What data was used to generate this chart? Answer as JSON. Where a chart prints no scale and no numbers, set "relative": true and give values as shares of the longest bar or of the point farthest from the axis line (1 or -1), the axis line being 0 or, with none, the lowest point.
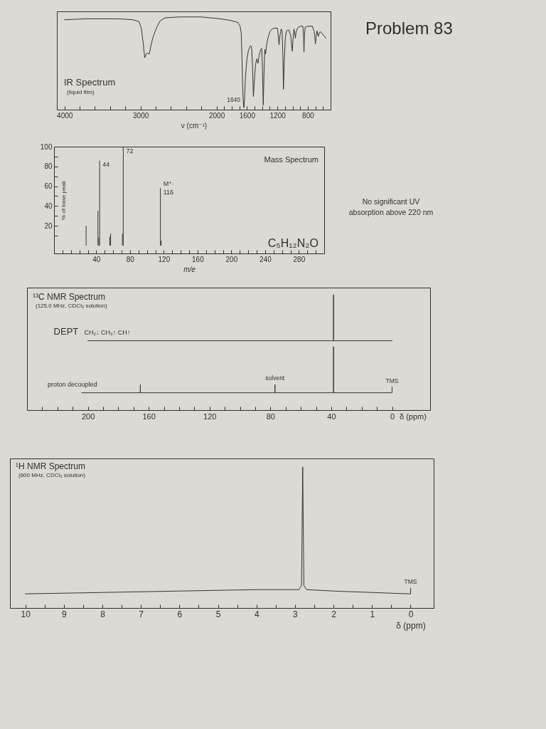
{
  "chart_data": [
    {
      "type": "line",
      "title": "IR Spectrum",
      "subtitle": "(liquid film)",
      "xlabel": "ν (cm⁻¹)",
      "relative": true,
      "color": "#333333",
      "x": [
        4000,
        3700,
        3300,
        3100,
        3020,
        2990,
        2965,
        2945,
        2925,
        2905,
        2885,
        2865,
        2840,
        2810,
        2780,
        2740,
        2680,
        2500,
        2200,
        1950,
        1800,
        1720,
        1690,
        1675,
        1665,
        1655,
        1645,
        1640,
        1632,
        1620,
        1600,
        1580,
        1555,
        1540,
        1528,
        1515,
        1502,
        1488,
        1470,
        1455,
        1440,
        1420,
        1405,
        1395,
        1386,
        1376,
        1365,
        1355,
        1345,
        1330,
        1300,
        1270,
        1230,
        1200,
        1188,
        1178,
        1166,
        1150,
        1138,
        1128,
        1120,
        1110,
        1095,
        1080,
        1050,
        1025,
        1012,
        1004,
        995,
        982,
        972,
        963,
        955,
        935,
        900,
        865,
        856,
        850,
        844,
        835,
        800,
        740,
        715,
        700,
        688,
        678,
        668,
        660,
        650,
        630,
        600,
        560
      ],
      "values": [
        0.97,
        0.98,
        0.98,
        0.97,
        0.95,
        0.88,
        0.72,
        0.56,
        0.6,
        0.61,
        0.6,
        0.68,
        0.77,
        0.84,
        0.9,
        0.96,
        0.99,
        1.0,
        1.0,
        0.98,
        0.96,
        0.94,
        0.9,
        0.82,
        0.55,
        0.2,
        0.04,
        0.02,
        0.12,
        0.35,
        0.55,
        0.64,
        0.69,
        0.68,
        0.5,
        0.14,
        0.32,
        0.48,
        0.55,
        0.5,
        0.58,
        0.65,
        0.66,
        0.42,
        0.05,
        0.38,
        0.65,
        0.6,
        0.68,
        0.75,
        0.84,
        0.87,
        0.88,
        0.88,
        0.8,
        0.7,
        0.8,
        0.87,
        0.85,
        0.6,
        0.22,
        0.5,
        0.78,
        0.85,
        0.86,
        0.8,
        0.7,
        0.63,
        0.75,
        0.87,
        0.83,
        0.77,
        0.83,
        0.88,
        0.9,
        0.9,
        0.8,
        0.62,
        0.8,
        0.89,
        0.9,
        0.9,
        0.84,
        0.71,
        0.8,
        0.85,
        0.8,
        0.79,
        0.83,
        0.84,
        0.81,
        0.77
      ],
      "xlim": [
        4100,
        500
      ],
      "xticks": [
        4000,
        {
          "value": 3800,
          "label": null
        },
        {
          "value": 3600,
          "label": null
        },
        {
          "value": 3400,
          "label": null
        },
        {
          "value": 3200,
          "label": null
        },
        3000,
        {
          "value": 2800,
          "label": null
        },
        {
          "value": 2600,
          "label": null
        },
        {
          "value": 2400,
          "label": null
        },
        {
          "value": 2200,
          "label": null
        },
        2000,
        {
          "value": 1900,
          "label": null
        },
        {
          "value": 1800,
          "label": null
        },
        {
          "value": 1700,
          "label": null
        },
        1600,
        {
          "value": 1500,
          "label": null
        },
        {
          "value": 1400,
          "label": null
        },
        {
          "value": 1300,
          "label": null
        },
        1200,
        {
          "value": 1100,
          "label": null
        },
        {
          "value": 1000,
          "label": null
        },
        {
          "value": 900,
          "label": null
        },
        800,
        {
          "value": 700,
          "label": null
        },
        {
          "value": 600,
          "label": null
        }
      ],
      "annotations": [
        {
          "text": "1640",
          "x": 1640,
          "y": 0.02
        }
      ]
    },
    {
      "type": "other",
      "title": "Problem 83",
      "annotations": [
        "No significant UV absorption above 220 nm"
      ]
    },
    {
      "type": "bar",
      "title": "Mass Spectrum",
      "xlabel": "m/e",
      "ylabel": "% of base peak",
      "color": "#333333",
      "x": [
        28,
        42,
        43,
        44,
        56,
        57,
        71,
        72,
        116,
        117
      ],
      "values": [
        20,
        35,
        8,
        86,
        9,
        12,
        12,
        100,
        58,
        5
      ],
      "xlim": [
        -10,
        310
      ],
      "xticks": [
        {
          "value": 0,
          "label": null
        },
        {
          "value": 10,
          "label": null
        },
        {
          "value": 20,
          "label": null
        },
        {
          "value": 30,
          "label": null
        },
        40,
        {
          "value": 50,
          "label": null
        },
        {
          "value": 60,
          "label": null
        },
        {
          "value": 70,
          "label": null
        },
        80,
        {
          "value": 90,
          "label": null
        },
        {
          "value": 100,
          "label": null
        },
        {
          "value": 110,
          "label": null
        },
        120,
        {
          "value": 130,
          "label": null
        },
        {
          "value": 140,
          "label": null
        },
        {
          "value": 150,
          "label": null
        },
        160,
        {
          "value": 170,
          "label": null
        },
        {
          "value": 180,
          "label": null
        },
        {
          "value": 190,
          "label": null
        },
        200,
        {
          "value": 210,
          "label": null
        },
        {
          "value": 220,
          "label": null
        },
        {
          "value": 230,
          "label": null
        },
        240,
        {
          "value": 250,
          "label": null
        },
        {
          "value": 260,
          "label": null
        },
        {
          "value": 270,
          "label": null
        },
        280,
        {
          "value": 290,
          "label": null
        },
        {
          "value": 300,
          "label": null
        }
      ],
      "ylim": [
        -8,
        100
      ],
      "yticks": [
        {
          "value": 10,
          "label": null
        },
        20,
        {
          "value": 30,
          "label": null
        },
        40,
        {
          "value": 50,
          "label": null
        },
        60,
        {
          "value": 70,
          "label": null
        },
        80,
        {
          "value": 90,
          "label": null
        },
        100
      ],
      "annotations": [
        {
          "text": "44",
          "x": 44,
          "y": 86
        },
        {
          "text": "72",
          "x": 72,
          "y": 100
        },
        {
          "text": "M⁺·",
          "x": 116,
          "y": 58
        },
        {
          "text": "116",
          "x": 116,
          "y": 58
        },
        "C₅H₁₂N₂O"
      ]
    },
    {
      "type": "line",
      "title": "¹³C NMR Spectrum",
      "subtitle": "(125.0 MHz, CDCl₃ solution)",
      "xlabel": "δ (ppm)",
      "relative": true,
      "series": [
        {
          "name": "DEPT",
          "color": "#333333",
          "x": [
            200,
            38.5,
            38.5,
            38.5,
            0
          ],
          "values": [
            0.6,
            0.6,
            1.0,
            0.6,
            0.6
          ]
        },
        {
          "name": "proton decoupled",
          "color": "#333333",
          "x": [
            204,
            165.5,
            165.5,
            165.5,
            77,
            77,
            77,
            38.5,
            38.5,
            38.5,
            0,
            0
          ],
          "values": [
            0.15,
            0.15,
            0.22,
            0.15,
            0.15,
            0.22,
            0.15,
            0.15,
            0.55,
            0.15,
            0.15,
            0.2
          ]
        }
      ],
      "xlim": [
        240,
        -25
      ],
      "xticks": [
        {
          "value": 230,
          "label": null
        },
        {
          "value": 220,
          "label": null
        },
        {
          "value": 210,
          "label": null
        },
        200,
        {
          "value": 190,
          "label": null
        },
        {
          "value": 180,
          "label": null
        },
        {
          "value": 170,
          "label": null
        },
        160,
        {
          "value": 150,
          "label": null
        },
        {
          "value": 140,
          "label": null
        },
        {
          "value": 130,
          "label": null
        },
        120,
        {
          "value": 110,
          "label": null
        },
        {
          "value": 100,
          "label": null
        },
        {
          "value": 90,
          "label": null
        },
        80,
        {
          "value": 70,
          "label": null
        },
        {
          "value": 60,
          "label": null
        },
        {
          "value": 50,
          "label": null
        },
        40,
        {
          "value": 30,
          "label": null
        },
        {
          "value": 20,
          "label": null
        },
        {
          "value": 10,
          "label": null
        },
        0
      ],
      "annotations": [
        "CH₂↓ CH₃↑ CH↑",
        {
          "text": "solvent",
          "x": 77,
          "y": 0.22
        },
        {
          "text": "TMS",
          "x": 0,
          "y": 0.2
        }
      ]
    },
    {
      "type": "line",
      "title": "¹H NMR Spectrum",
      "subtitle": "(600 MHz, CDCl₃ solution)",
      "xlabel": "δ (ppm)",
      "relative": true,
      "color": "#333333",
      "x": [
        10,
        8,
        6,
        4,
        3.2,
        2.9,
        2.83,
        2.8,
        2.77,
        2.7,
        2,
        1,
        0.03,
        0,
        0
      ],
      "values": [
        0.1,
        0.11,
        0.12,
        0.13,
        0.13,
        0.13,
        0.16,
        1.0,
        0.16,
        0.13,
        0.12,
        0.11,
        0.1,
        0.1,
        0.14
      ],
      "xlim": [
        10.4,
        -0.6
      ],
      "xticks": [
        10,
        {
          "value": 9.5,
          "label": null
        },
        9,
        {
          "value": 8.5,
          "label": null
        },
        8,
        {
          "value": 7.5,
          "label": null
        },
        7,
        {
          "value": 6.5,
          "label": null
        },
        6,
        {
          "value": 5.5,
          "label": null
        },
        5,
        {
          "value": 4.5,
          "label": null
        },
        4,
        {
          "value": 3.5,
          "label": null
        },
        3,
        {
          "value": 2.5,
          "label": null
        },
        2,
        {
          "value": 1.5,
          "label": null
        },
        1,
        {
          "value": 0.5,
          "label": null
        },
        0
      ],
      "annotations": [
        {
          "text": "TMS",
          "x": 0,
          "y": 0.14
        }
      ]
    }
  ]
}
